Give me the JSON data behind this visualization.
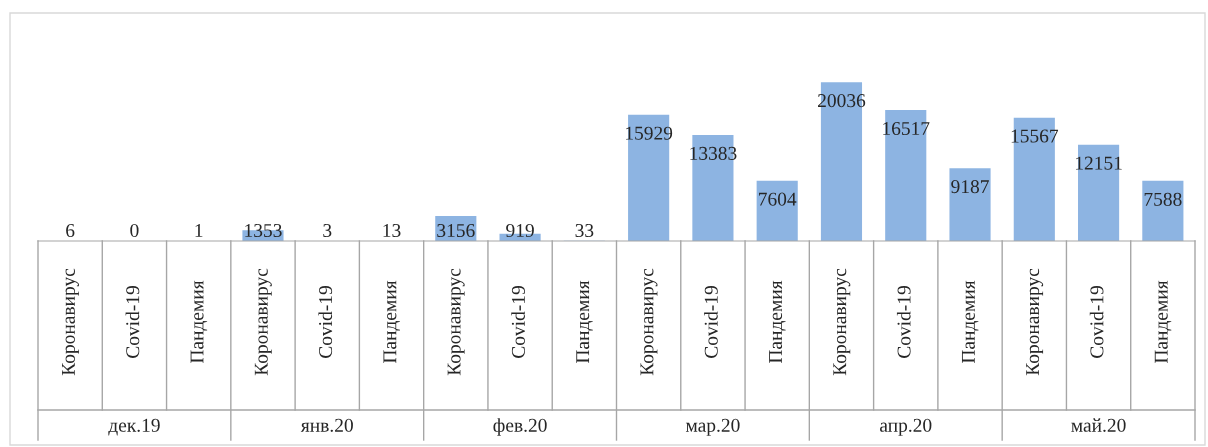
{
  "chart_data": {
    "type": "bar",
    "categories": [
      "Коронавирус",
      "Covid-19",
      "Пандемия",
      "Коронавирус",
      "Covid-19",
      "Пандемия",
      "Коронавирус",
      "Covid-19",
      "Пандемия",
      "Коронавирус",
      "Covid-19",
      "Пандемия",
      "Коронавирус",
      "Covid-19",
      "Пандемия",
      "Коронавирус",
      "Covid-19",
      "Пандемия"
    ],
    "values": [
      6,
      0,
      1,
      1353,
      3,
      13,
      3156,
      919,
      33,
      15929,
      13383,
      7604,
      20036,
      16517,
      9187,
      15567,
      12151,
      7588
    ],
    "color": "#8db4e2",
    "data_labels": true,
    "annotations": [
      "дек.19",
      "янв.20",
      "фев.20",
      "мар.20",
      "апр.20",
      "май.20"
    ],
    "legend": false
  }
}
